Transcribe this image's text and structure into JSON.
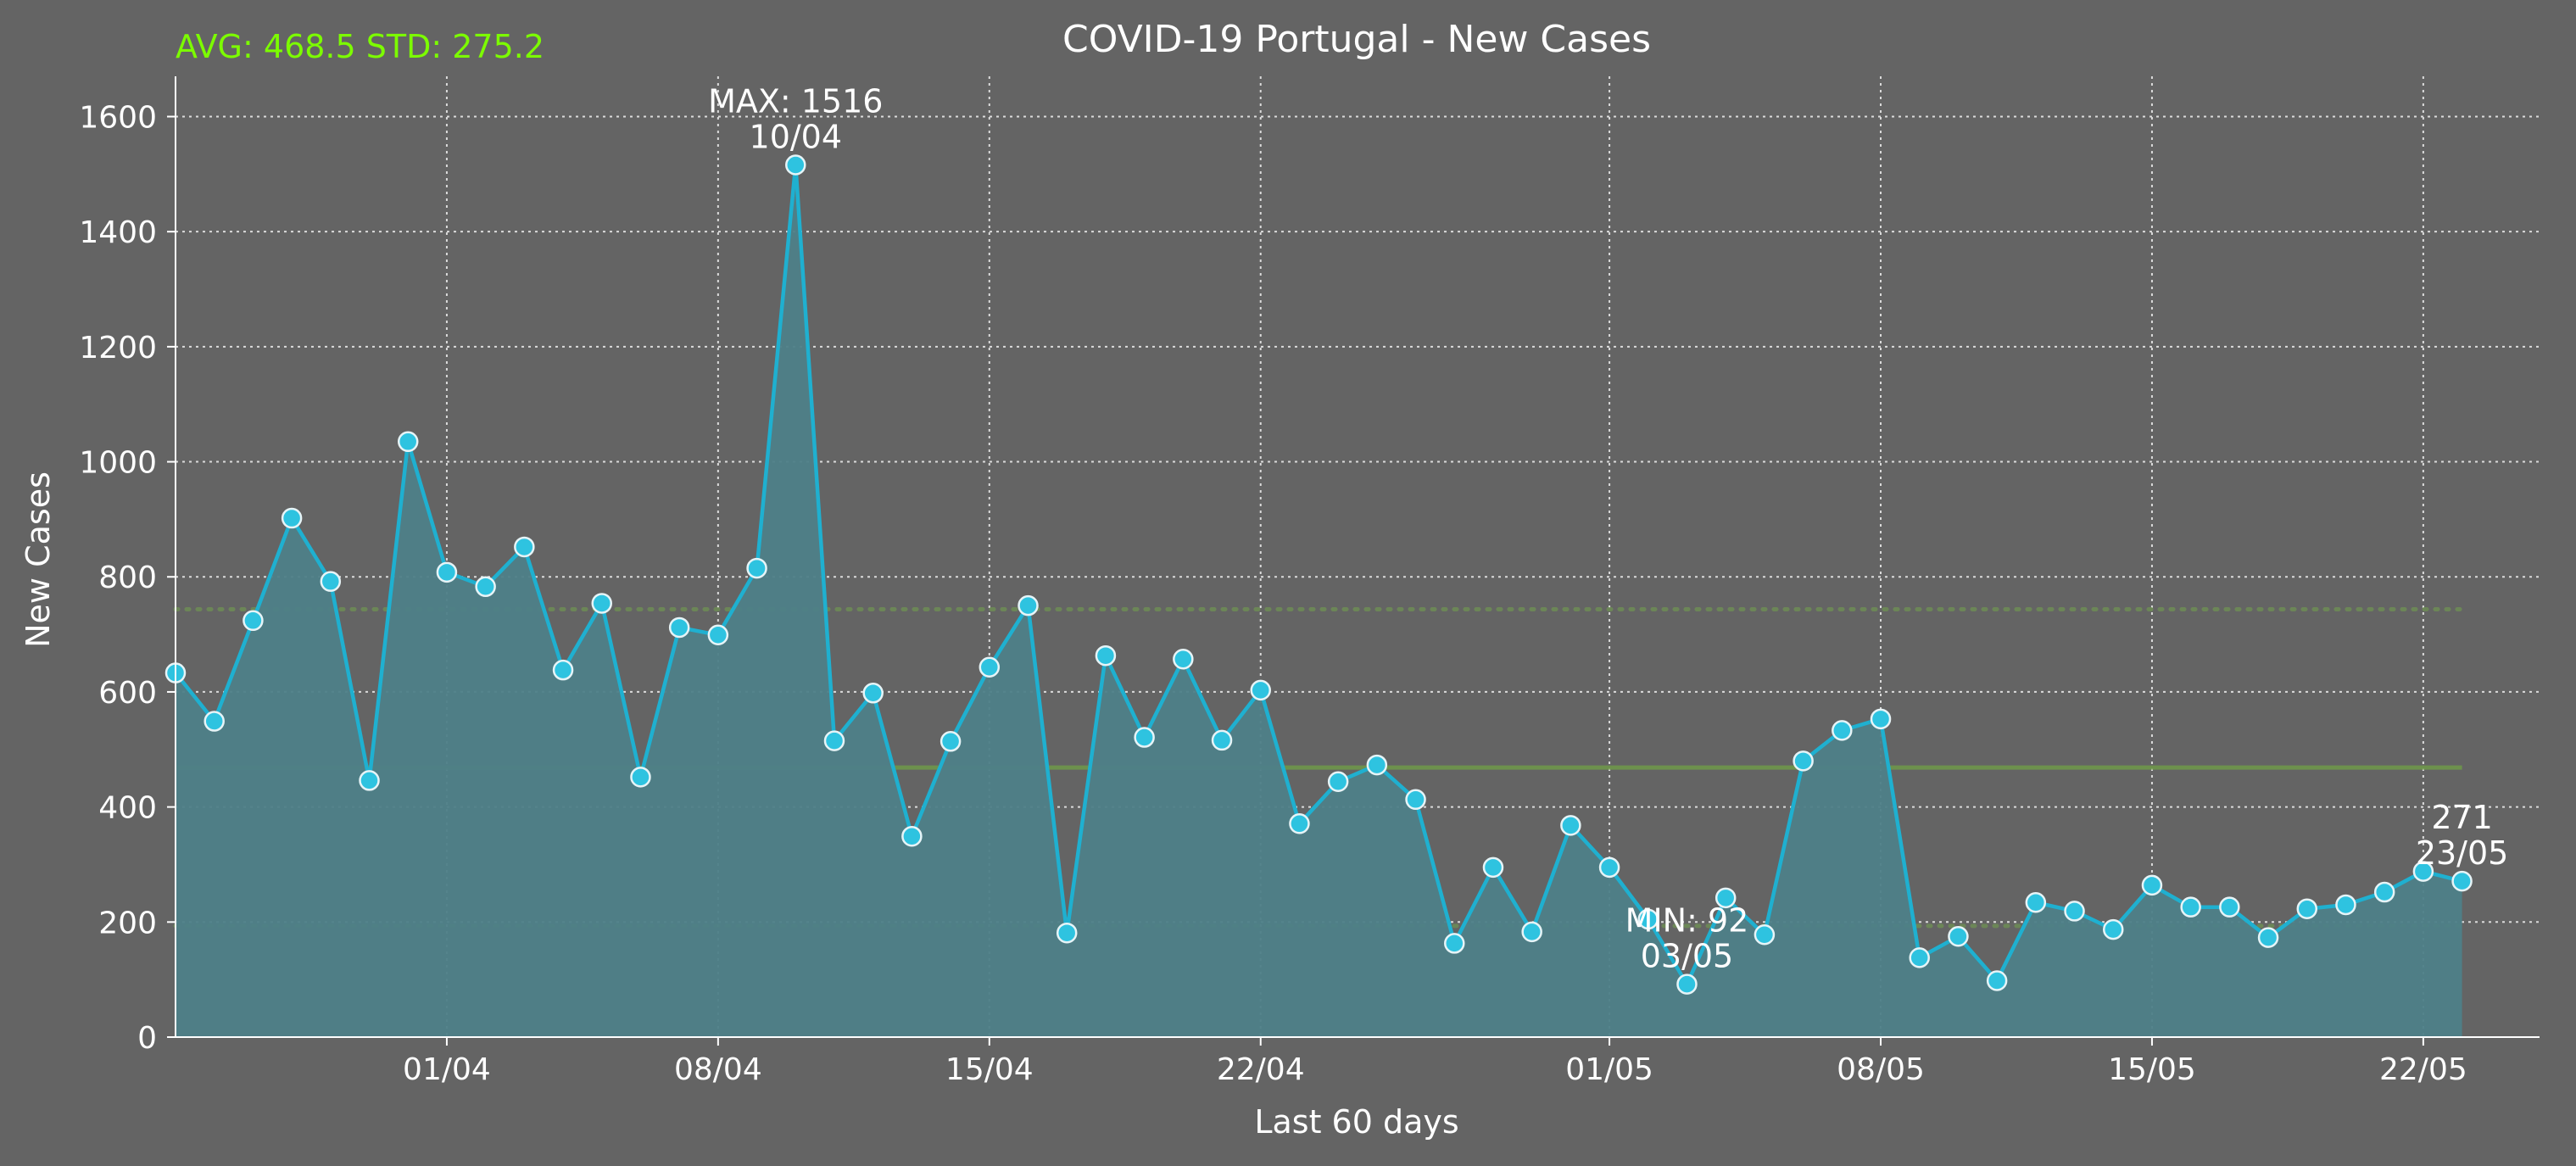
{
  "chart_data": {
    "type": "line",
    "title": "COVID-19 Portugal - New Cases",
    "xlabel": "Last 60 days",
    "ylabel": "New Cases",
    "ylim": [
      0,
      1670
    ],
    "yticks": [
      0,
      200,
      400,
      600,
      800,
      1000,
      1200,
      1400,
      1600
    ],
    "x_range": [
      "2020-03-25",
      "2020-05-25"
    ],
    "xticks": [
      {
        "date": "2020-04-01",
        "label": "01/04"
      },
      {
        "date": "2020-04-08",
        "label": "08/04"
      },
      {
        "date": "2020-04-15",
        "label": "15/04"
      },
      {
        "date": "2020-04-22",
        "label": "22/04"
      },
      {
        "date": "2020-05-01",
        "label": "01/05"
      },
      {
        "date": "2020-05-08",
        "label": "08/05"
      },
      {
        "date": "2020-05-15",
        "label": "15/05"
      },
      {
        "date": "2020-05-22",
        "label": "22/05"
      }
    ],
    "grid": true,
    "stats_text": "AVG: 468.5 STD: 275.2",
    "avg": 468.5,
    "std_upper": 743.7,
    "std_lower": 193.3,
    "colors": {
      "background": "#646464",
      "line": "#1fb0d0",
      "fill": "#4e7f88",
      "marker": "#2ec3e0",
      "marker_edge": "#e6f4f7",
      "avg_line": "#6f9a4a",
      "std_line": "#6f8f55",
      "stats_text": "#7cfc00",
      "text": "#ffffff",
      "grid": "#e8e8e8"
    },
    "series": [
      {
        "x": [
          "2020-03-25",
          "2020-03-26",
          "2020-03-27",
          "2020-03-28",
          "2020-03-29",
          "2020-03-30",
          "2020-03-31",
          "2020-04-01",
          "2020-04-02",
          "2020-04-03",
          "2020-04-04",
          "2020-04-05",
          "2020-04-06",
          "2020-04-07",
          "2020-04-08",
          "2020-04-09",
          "2020-04-10",
          "2020-04-11",
          "2020-04-12",
          "2020-04-13",
          "2020-04-14",
          "2020-04-15",
          "2020-04-16",
          "2020-04-17",
          "2020-04-18",
          "2020-04-19",
          "2020-04-20",
          "2020-04-21",
          "2020-04-22",
          "2020-04-23",
          "2020-04-24",
          "2020-04-25",
          "2020-04-26",
          "2020-04-27",
          "2020-04-28",
          "2020-04-29",
          "2020-04-30",
          "2020-05-01",
          "2020-05-02",
          "2020-05-03",
          "2020-05-04",
          "2020-05-05",
          "2020-05-06",
          "2020-05-07",
          "2020-05-08",
          "2020-05-09",
          "2020-05-10",
          "2020-05-11",
          "2020-05-12",
          "2020-05-13",
          "2020-05-14",
          "2020-05-15",
          "2020-05-16",
          "2020-05-17",
          "2020-05-18",
          "2020-05-19",
          "2020-05-20",
          "2020-05-21",
          "2020-05-22",
          "2020-05-23"
        ],
        "values": [
          633,
          549,
          724,
          902,
          792,
          446,
          1035,
          808,
          783,
          852,
          638,
          754,
          452,
          712,
          699,
          815,
          1516,
          515,
          598,
          349,
          514,
          643,
          750,
          181,
          663,
          521,
          657,
          516,
          603,
          371,
          444,
          473,
          413,
          163,
          295,
          183,
          368,
          295,
          205,
          92,
          242,
          178,
          480,
          533,
          553,
          138,
          175,
          98,
          234,
          219,
          187,
          264,
          226,
          226,
          173,
          223,
          230,
          252,
          288,
          271
        ]
      }
    ],
    "annotations": [
      {
        "date": "2020-04-10",
        "value": 1516,
        "line1": "MAX: 1516",
        "line2": "10/04"
      },
      {
        "date": "2020-05-03",
        "value": 92,
        "line1": "MIN: 92",
        "line2": "03/05"
      },
      {
        "date": "2020-05-23",
        "value": 271,
        "line1": "271",
        "line2": "23/05"
      }
    ]
  }
}
